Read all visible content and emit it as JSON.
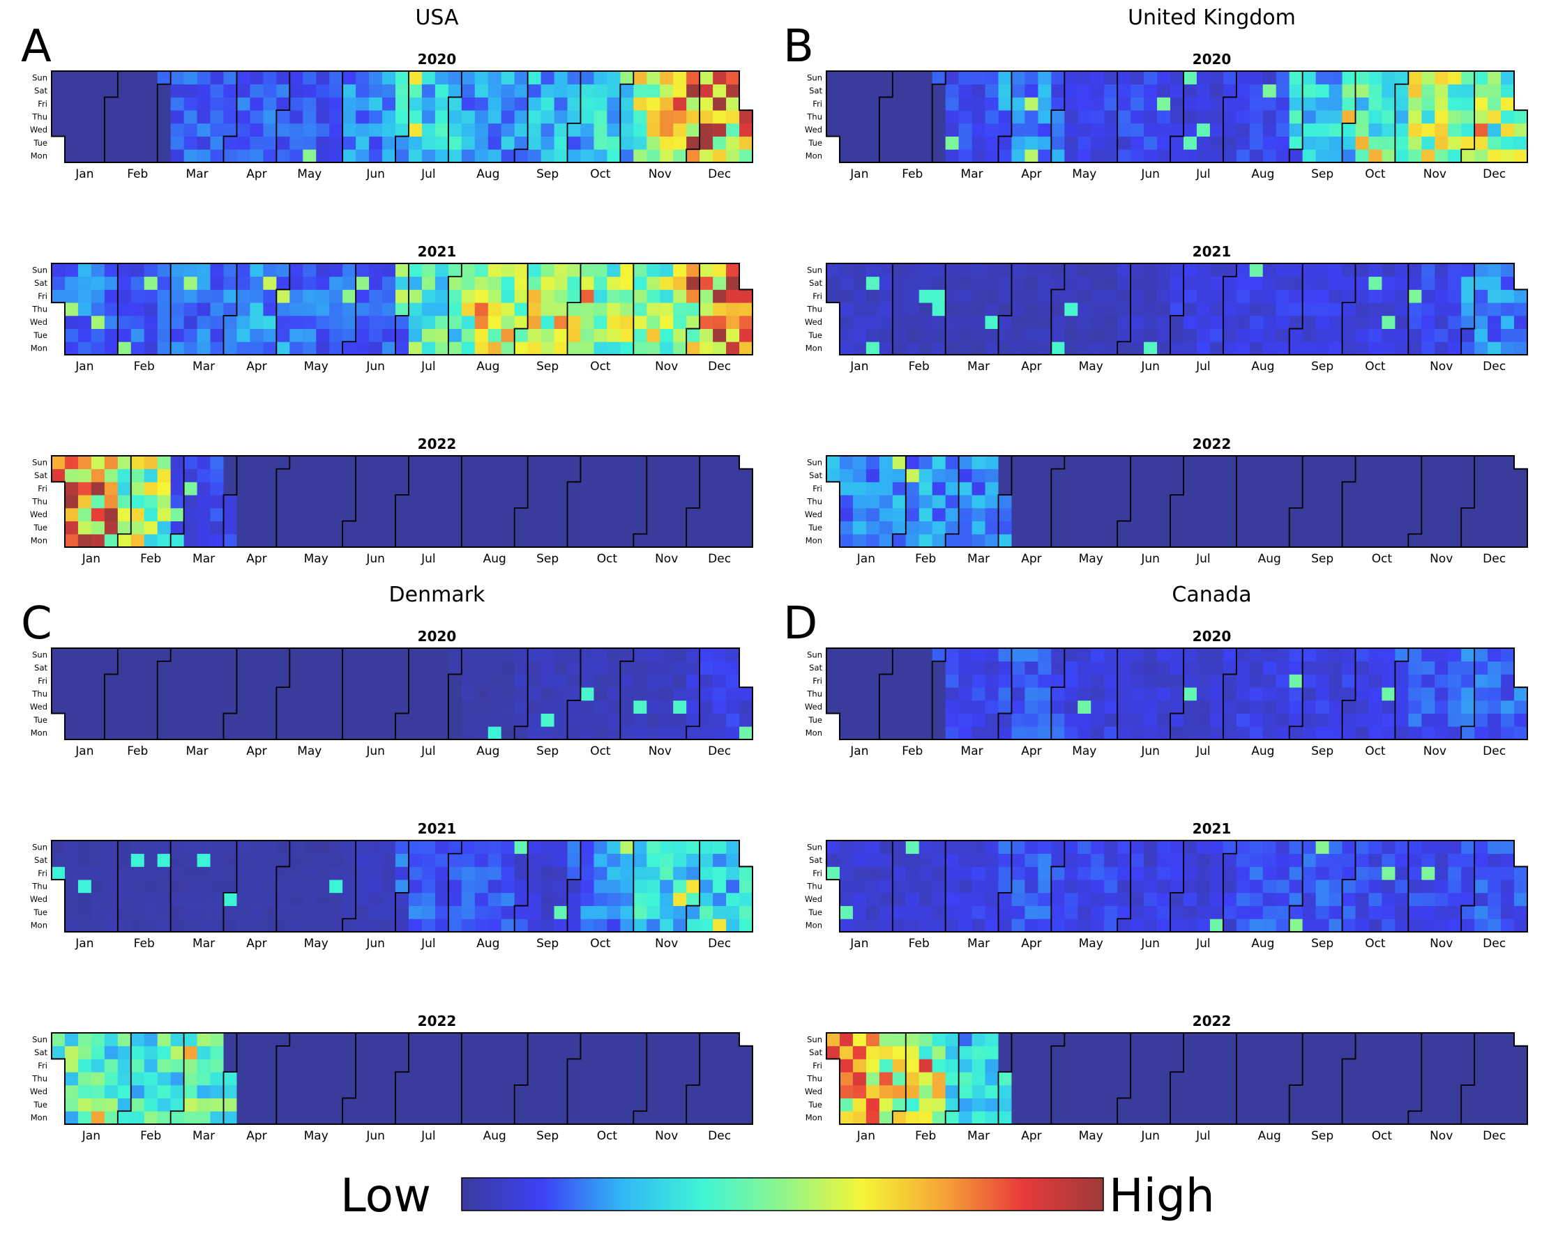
{
  "chart_data": {
    "type": "heatmap",
    "subtype": "calendar-heatmap",
    "years": [
      "2020",
      "2021",
      "2022"
    ],
    "weekdays": [
      "Mon",
      "Tue",
      "Wed",
      "Thu",
      "Fri",
      "Sat",
      "Sun"
    ],
    "months": [
      "Jan",
      "Feb",
      "Mar",
      "Apr",
      "May",
      "Jun",
      "Jul",
      "Aug",
      "Sep",
      "Oct",
      "Nov",
      "Dec"
    ],
    "value_scale": "normalized 0 (Low) to 1 (High)",
    "colormap": [
      "#3a3c9c",
      "#3d40f5",
      "#31b7f5",
      "#3ef5d6",
      "#8ff58a",
      "#f5f536",
      "#f5a536",
      "#e83a3a",
      "#9e3a3a"
    ],
    "colorbar": {
      "low_label": "Low",
      "high_label": "High",
      "orientation": "horizontal",
      "position": "bottom-center"
    },
    "panels": [
      {
        "letter": "A",
        "country": "USA",
        "monthly_intensity": {
          "2020": [
            0.0,
            0.0,
            0.15,
            0.15,
            0.14,
            0.2,
            0.3,
            0.22,
            0.25,
            0.3,
            0.55,
            0.75
          ],
          "2021": [
            0.18,
            0.15,
            0.17,
            0.22,
            0.16,
            0.15,
            0.4,
            0.6,
            0.58,
            0.48,
            0.5,
            0.75
          ],
          "2022": [
            0.75,
            0.5,
            0.12,
            0.0,
            0.0,
            0.0,
            0.0,
            0.0,
            0.0,
            0.0,
            0.0,
            0.0
          ]
        }
      },
      {
        "letter": "B",
        "country": "United Kingdom",
        "monthly_intensity": {
          "2020": [
            0.0,
            0.0,
            0.12,
            0.2,
            0.12,
            0.12,
            0.08,
            0.12,
            0.3,
            0.38,
            0.5,
            0.48
          ],
          "2021": [
            0.06,
            0.04,
            0.04,
            0.04,
            0.04,
            0.06,
            0.1,
            0.1,
            0.1,
            0.1,
            0.12,
            0.2
          ],
          "2022": [
            0.2,
            0.22,
            0.2,
            0.0,
            0.0,
            0.0,
            0.0,
            0.0,
            0.0,
            0.0,
            0.0,
            0.0
          ]
        }
      },
      {
        "letter": "C",
        "country": "Denmark",
        "monthly_intensity": {
          "2020": [
            0.0,
            0.0,
            0.0,
            0.0,
            0.0,
            0.0,
            0.0,
            0.02,
            0.04,
            0.04,
            0.05,
            0.1
          ],
          "2021": [
            0.02,
            0.02,
            0.02,
            0.02,
            0.02,
            0.05,
            0.15,
            0.14,
            0.08,
            0.2,
            0.3,
            0.3
          ],
          "2022": [
            0.4,
            0.4,
            0.4,
            0.0,
            0.0,
            0.0,
            0.0,
            0.0,
            0.0,
            0.0,
            0.0,
            0.0
          ]
        }
      },
      {
        "letter": "D",
        "country": "Canada",
        "monthly_intensity": {
          "2020": [
            0.0,
            0.0,
            0.12,
            0.14,
            0.1,
            0.08,
            0.08,
            0.1,
            0.1,
            0.1,
            0.14,
            0.16
          ],
          "2021": [
            0.08,
            0.08,
            0.1,
            0.14,
            0.12,
            0.1,
            0.1,
            0.14,
            0.14,
            0.12,
            0.12,
            0.14
          ],
          "2022": [
            0.65,
            0.55,
            0.3,
            0.0,
            0.0,
            0.0,
            0.0,
            0.0,
            0.0,
            0.0,
            0.0,
            0.0
          ]
        }
      }
    ]
  }
}
